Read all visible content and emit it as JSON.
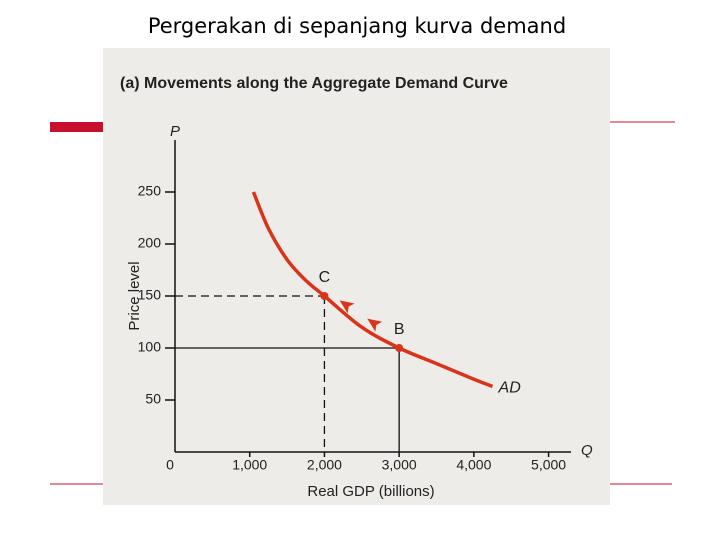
{
  "title": "Pergerakan di sepanjang kurva demand",
  "chart_data": {
    "type": "line",
    "subtitle": "(a) Movements along the Aggregate Demand Curve",
    "x_label": "Real GDP (billions)",
    "y_label": "Price level",
    "x_axis_symbol": "Q",
    "y_axis_symbol": "P",
    "series": [
      {
        "name": "AD",
        "color": "#d9331a",
        "x": [
          1050,
          1250,
          1500,
          1750,
          2000,
          2500,
          3000,
          3500,
          4000,
          4250
        ],
        "values": [
          250,
          215,
          185,
          165,
          150,
          120,
          100,
          85,
          70,
          63
        ]
      }
    ],
    "points": [
      {
        "label": "C",
        "x": 2000,
        "y": 150,
        "guide": "dashed"
      },
      {
        "label": "B",
        "x": 3000,
        "y": 100,
        "guide": "solid"
      }
    ],
    "xlim": [
      0,
      5300
    ],
    "ylim": [
      0,
      300
    ],
    "xticks": [
      0,
      {
        "value": 1000,
        "label": "1,000"
      },
      {
        "value": 2000,
        "label": "2,000"
      },
      {
        "value": 3000,
        "label": "3,000"
      },
      {
        "value": 4000,
        "label": "4,000"
      },
      {
        "value": 5000,
        "label": "5,000"
      }
    ],
    "yticks": [
      50,
      100,
      150,
      200,
      250
    ]
  }
}
